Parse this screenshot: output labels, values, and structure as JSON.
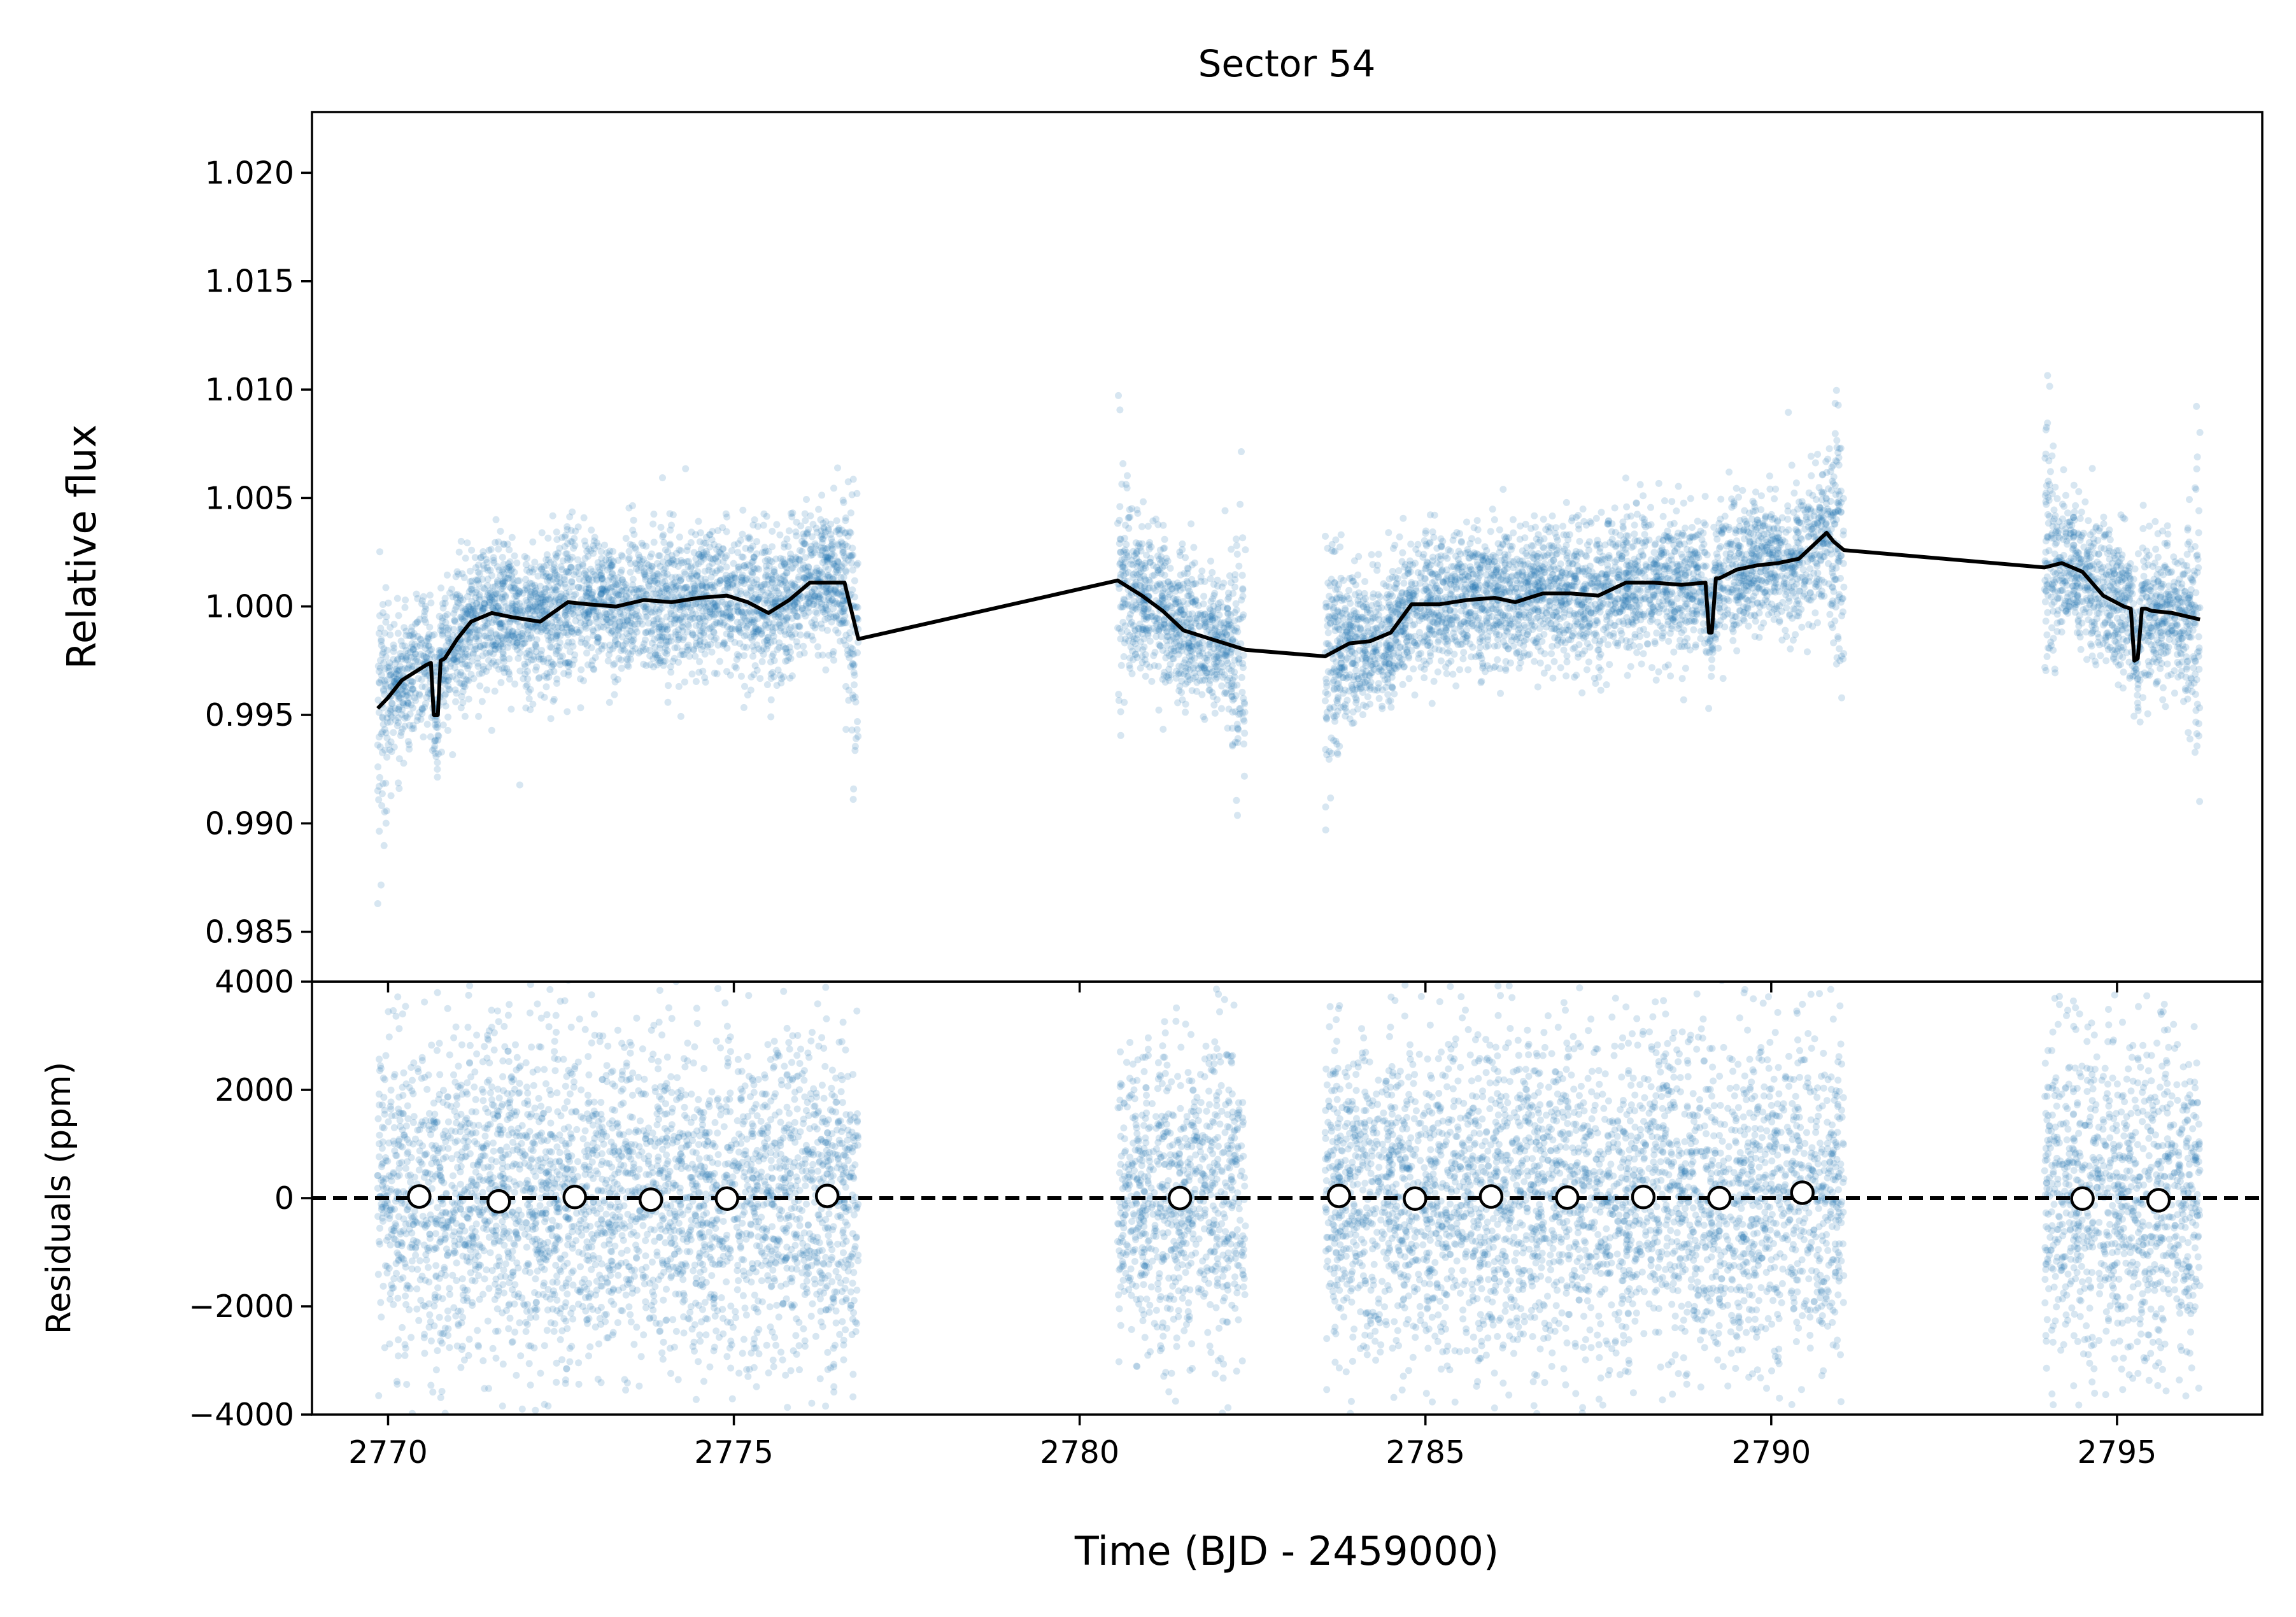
{
  "chart_data": [
    {
      "type": "scatter",
      "panel": "top",
      "title": "Sector 54",
      "ylabel": "Relative flux",
      "xlim": [
        2768.9,
        2797.1
      ],
      "ylim": [
        0.9827,
        1.0228
      ],
      "yticks": [
        0.985,
        0.99,
        0.995,
        1.0,
        1.005,
        1.01,
        1.015,
        1.02
      ],
      "ytick_labels": [
        "0.985",
        "0.990",
        "0.995",
        "1.000",
        "1.005",
        "1.010",
        "1.015",
        "1.020"
      ],
      "data_color": "#1f77b4",
      "model_color": "#000000",
      "data_segments": [
        {
          "name": "orbit-1",
          "x_range": [
            2769.85,
            2776.8
          ]
        },
        {
          "name": "orbit-2",
          "x_range": [
            2780.55,
            2782.4
          ]
        },
        {
          "name": "orbit-3",
          "x_range": [
            2783.55,
            2791.05
          ]
        },
        {
          "name": "orbit-4",
          "x_range": [
            2793.95,
            2796.2
          ]
        }
      ],
      "series": [
        {
          "name": "model",
          "x": [
            2769.85,
            2770.0,
            2770.2,
            2770.4,
            2770.55,
            2770.62,
            2770.66,
            2770.72,
            2770.76,
            2770.82,
            2771.0,
            2771.2,
            2771.5,
            2771.8,
            2772.2,
            2772.6,
            2772.9,
            2773.3,
            2773.7,
            2774.1,
            2774.5,
            2774.9,
            2775.2,
            2775.5,
            2775.8,
            2776.1,
            2776.6,
            2776.8,
            2780.55,
            2780.9,
            2781.2,
            2781.5,
            2781.9,
            2782.4,
            2783.55,
            2783.9,
            2784.2,
            2784.5,
            2784.8,
            2785.2,
            2785.6,
            2786.0,
            2786.3,
            2786.7,
            2787.1,
            2787.5,
            2787.9,
            2788.3,
            2788.7,
            2789.05,
            2789.1,
            2789.14,
            2789.2,
            2789.25,
            2789.5,
            2789.8,
            2790.1,
            2790.4,
            2790.6,
            2790.8,
            2790.9,
            2791.05,
            2793.95,
            2794.2,
            2794.5,
            2794.8,
            2795.1,
            2795.2,
            2795.25,
            2795.3,
            2795.36,
            2795.42,
            2795.5,
            2795.8,
            2796.2
          ],
          "values": [
            0.9953,
            0.9958,
            0.9966,
            0.997,
            0.9973,
            0.9974,
            0.995,
            0.995,
            0.9975,
            0.9976,
            0.9985,
            0.9993,
            0.9997,
            0.9995,
            0.9993,
            1.0002,
            1.0001,
            1.0,
            1.0003,
            1.0002,
            1.0004,
            1.0005,
            1.0002,
            0.9997,
            1.0003,
            1.0011,
            1.0011,
            0.9985,
            1.0012,
            1.0005,
            0.9998,
            0.9989,
            0.9985,
            0.998,
            0.9977,
            0.9983,
            0.9984,
            0.9988,
            1.0001,
            1.0001,
            1.0003,
            1.0004,
            1.0002,
            1.0006,
            1.0006,
            1.0005,
            1.0011,
            1.0011,
            1.001,
            1.0011,
            0.9988,
            0.9988,
            1.0013,
            1.0013,
            1.0017,
            1.0019,
            1.002,
            1.0022,
            1.0028,
            1.0034,
            1.003,
            1.0026,
            1.0018,
            1.002,
            1.0016,
            1.0005,
            1.0,
            0.9999,
            0.9975,
            0.9976,
            0.9999,
            0.9999,
            0.9998,
            0.9997,
            0.9994
          ]
        }
      ]
    },
    {
      "type": "scatter",
      "panel": "bottom",
      "xlabel": "Time (BJD - 2459000)",
      "ylabel": "Residuals (ppm)",
      "xlim": [
        2768.9,
        2797.1
      ],
      "ylim": [
        -4000,
        4000
      ],
      "xticks": [
        2770,
        2775,
        2780,
        2785,
        2790,
        2795
      ],
      "xtick_labels": [
        "2770",
        "2775",
        "2780",
        "2785",
        "2790",
        "2795"
      ],
      "yticks": [
        -4000,
        -2000,
        0,
        2000,
        4000
      ],
      "ytick_labels": [
        "−4000",
        "−2000",
        "0",
        "2000",
        "4000"
      ],
      "reference_line": {
        "y": 0,
        "style": "dashed",
        "color": "#000000"
      },
      "series": [
        {
          "name": "binned residuals",
          "x": [
            2770.45,
            2771.6,
            2772.7,
            2773.8,
            2774.9,
            2776.35,
            2781.45,
            2783.75,
            2784.85,
            2785.95,
            2787.05,
            2788.15,
            2789.25,
            2790.45,
            2794.5,
            2795.6
          ],
          "values": [
            30,
            -60,
            20,
            -30,
            -10,
            40,
            0,
            40,
            -10,
            30,
            10,
            20,
            0,
            100,
            -10,
            -40
          ]
        }
      ]
    }
  ]
}
